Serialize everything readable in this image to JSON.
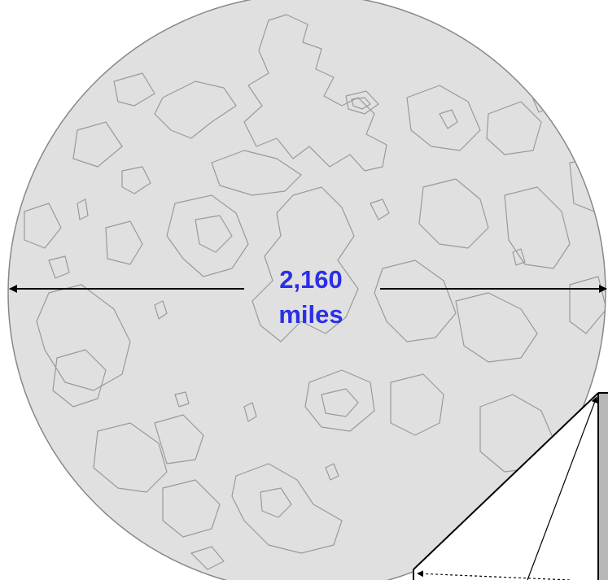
{
  "diagram": {
    "measurement": {
      "value": "2,160",
      "unit": "miles"
    },
    "colors": {
      "moon_fill": "#e0e0e0",
      "moon_outline": "#888888",
      "crater_lines": "#9a9a9a",
      "arrow": "#000000",
      "label": "#2b2fe6",
      "panel_fill": "#ffffff",
      "panel_side": "#b8b8b8"
    }
  }
}
